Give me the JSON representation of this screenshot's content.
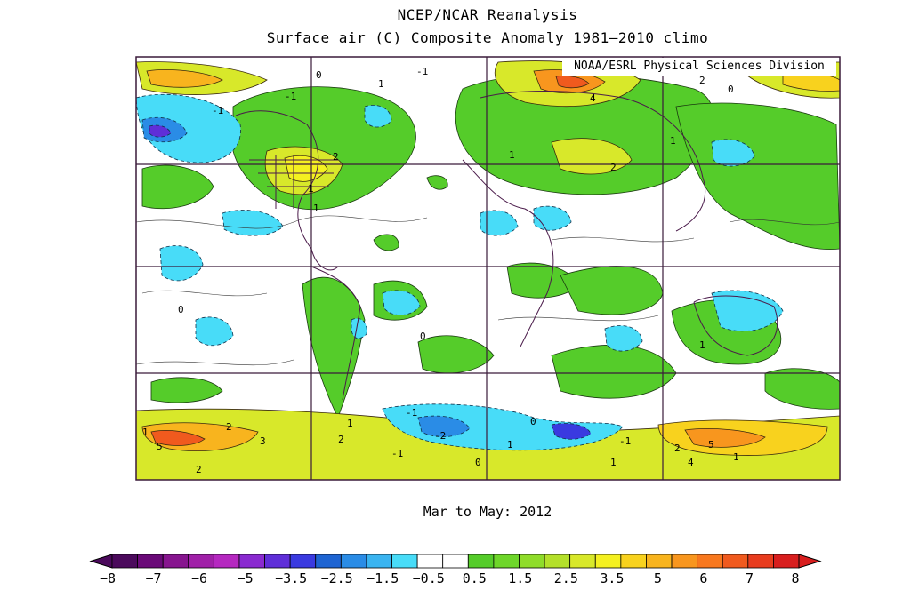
{
  "header": {
    "title": "NCEP/NCAR Reanalysis",
    "subtitle": "Surface air (C) Composite Anomaly 1981–2010 climo"
  },
  "map": {
    "credit": "NOAA/ESRL Physical Sciences Division",
    "period": "Mar to May: 2012",
    "contour_labels": [
      "0",
      "1",
      "-1",
      "2",
      "-2",
      "3",
      "4",
      "5"
    ]
  },
  "colorbar": {
    "tick_labels": [
      "−8",
      "−7",
      "−6",
      "−5",
      "−3.5",
      "−2.5",
      "−1.5",
      "−0.5",
      "0.5",
      "1.5",
      "2.5",
      "3.5",
      "5",
      "6",
      "7",
      "8"
    ],
    "colors": [
      "#4b0a5c",
      "#6a0a78",
      "#87158f",
      "#a020a8",
      "#b528c0",
      "#8a2ad0",
      "#5f2ed8",
      "#3a3ae0",
      "#1e64d2",
      "#2a8ce6",
      "#3ab4f0",
      "#48dcf8",
      "#ffffff",
      "#ffffff",
      "#55cc2a",
      "#6ed62a",
      "#8fdc2a",
      "#b4e02a",
      "#d8e82a",
      "#f4f020",
      "#f8d21e",
      "#f8b41e",
      "#f8961e",
      "#f8781e",
      "#f05a1e",
      "#e83c1e",
      "#d81e1e"
    ]
  }
}
